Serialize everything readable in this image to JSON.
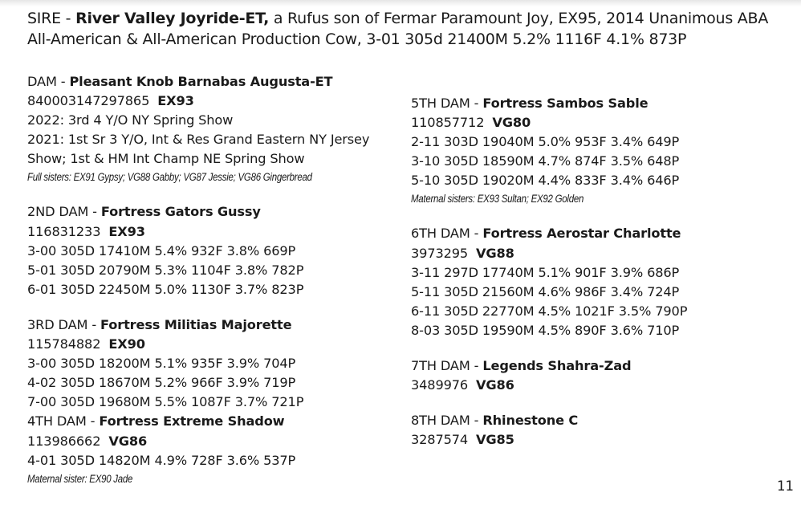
{
  "sire": {
    "label": "SIRE - ",
    "name": "River Valley Joyride-ET,",
    "line1_rest": " a Rufus son of Fermar Paramount Joy, EX95, 2014 Unanimous ABA",
    "line2": "All-American & All-American Production Cow, 3-01 305d 21400M 5.2% 1116F 4.1% 873P"
  },
  "dam": {
    "label": "DAM - ",
    "name": "Pleasant Knob Barnabas Augusta-ET",
    "id": "840003147297865",
    "score": "EX93",
    "lines": [
      "2022: 3rd 4 Y/O NY Spring Show",
      "2021: 1st Sr 3 Y/O, Int & Res Grand Eastern NY Jersey",
      "Show; 1st & HM Int Champ NE Spring Show"
    ],
    "note": "Full sisters: EX91 Gypsy; VG88 Gabby; VG87 Jessie; VG86 Gingerbread"
  },
  "dam2": {
    "label": "2ND DAM - ",
    "name": "Fortress Gators Gussy",
    "id": "116831233",
    "score": "EX93",
    "records": [
      "3-00 305D 17410M 5.4% 932F 3.8% 669P",
      "5-01 305D 20790M 5.3% 1104F 3.8% 782P",
      "6-01 305D 22450M 5.0% 1130F 3.7% 823P"
    ]
  },
  "dam3": {
    "label": "3RD DAM - ",
    "name": "Fortress Militias Majorette",
    "id": "115784882",
    "score": "EX90",
    "records": [
      "3-00 305D 18200M 5.1% 935F 3.9% 704P",
      "4-02 305D 18670M 5.2% 966F 3.9% 719P",
      "7-00 305D 19680M 5.5% 1087F 3.7% 721P"
    ]
  },
  "dam4": {
    "label": "4TH DAM - ",
    "name": "Fortress Extreme Shadow",
    "id": "113986662",
    "score": "VG86",
    "records": [
      "4-01 305D 14820M 4.9% 728F 3.6% 537P"
    ],
    "note": "Maternal sister: EX90 Jade"
  },
  "dam5": {
    "label": "5TH DAM - ",
    "name": "Fortress Sambos Sable",
    "id": "110857712",
    "score": "VG80",
    "records": [
      "2-11 303D 19040M 5.0% 953F 3.4% 649P",
      "3-10 305D 18590M 4.7% 874F 3.5% 648P",
      "5-10 305D 19020M 4.4% 833F 3.4% 646P"
    ],
    "note": "Maternal sisters: EX93 Sultan; EX92 Golden"
  },
  "dam6": {
    "label": "6TH DAM - ",
    "name": "Fortress Aerostar Charlotte",
    "id": "3973295",
    "score": "VG88",
    "records": [
      "3-11 297D 17740M 5.1% 901F 3.9% 686P",
      "5-11 305D 21560M 4.6% 986F 3.4% 724P",
      "6-11 305D 22770M 4.5% 1021F 3.5% 790P",
      "8-03 305D 19590M 4.5% 890F 3.6% 710P"
    ]
  },
  "dam7": {
    "label": "7TH DAM - ",
    "name": "Legends Shahra-Zad",
    "id": "3489976",
    "score": "VG86"
  },
  "dam8": {
    "label": "8TH DAM - ",
    "name": "Rhinestone C",
    "id": "3287574",
    "score": "VG85"
  },
  "page_number": "11"
}
